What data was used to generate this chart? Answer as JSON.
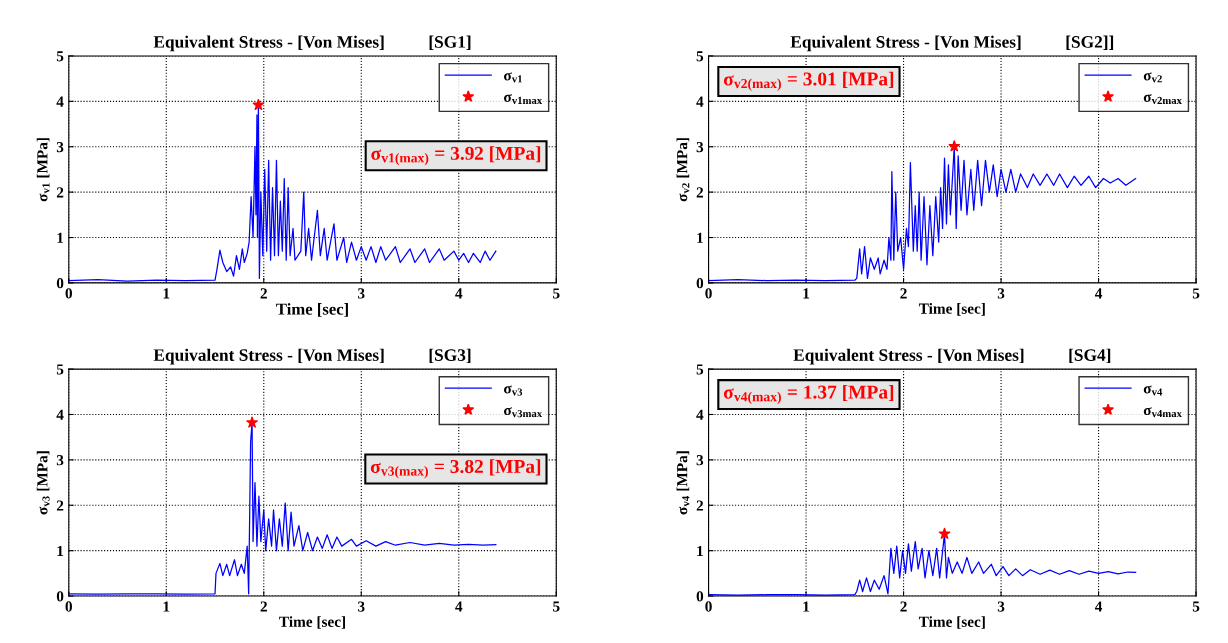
{
  "chart_data": [
    {
      "type": "line",
      "title": "Equivalent Stress - [Von Mises]          [SG1]",
      "xlabel": "Time [sec]",
      "ylabel": "σ$_{v1}$ [MPa]",
      "xlim": [
        0,
        5
      ],
      "xticks": [
        0,
        1,
        2,
        3,
        4,
        5
      ],
      "ylim": [
        0,
        5
      ],
      "yticks": [
        0,
        1,
        2,
        3,
        4,
        5
      ],
      "grid": true,
      "legend": "top right",
      "annotations": [
        "σ$_{v1(max)}$ = 3.92 [MPa]"
      ],
      "series": [
        {
          "name": "σ$_{v1}$",
          "color": "#0000ff",
          "marker": "none",
          "x": [
            0,
            0.3,
            0.6,
            0.9,
            1.2,
            1.5,
            1.52,
            1.55,
            1.58,
            1.62,
            1.66,
            1.69,
            1.72,
            1.75,
            1.78,
            1.8,
            1.83,
            1.85,
            1.87,
            1.89,
            1.91,
            1.92,
            1.93,
            1.935,
            1.945,
            1.955,
            1.97,
            1.99,
            2.01,
            2.03,
            2.05,
            2.07,
            2.09,
            2.11,
            2.13,
            2.15,
            2.17,
            2.19,
            2.21,
            2.23,
            2.25,
            2.27,
            2.3,
            2.32,
            2.38,
            2.41,
            2.43,
            2.46,
            2.49,
            2.55,
            2.58,
            2.62,
            2.65,
            2.72,
            2.75,
            2.82,
            2.85,
            2.9,
            2.95,
            3.0,
            3.05,
            3.1,
            3.15,
            3.2,
            3.25,
            3.35,
            3.4,
            3.5,
            3.55,
            3.65,
            3.7,
            3.8,
            3.85,
            3.95,
            4.0,
            4.05,
            4.1,
            4.15,
            4.22,
            4.27,
            4.32,
            4.38
          ],
          "values": [
            0.05,
            0.07,
            0.04,
            0.06,
            0.05,
            0.06,
            0.3,
            0.72,
            0.45,
            0.25,
            0.35,
            0.15,
            0.6,
            0.3,
            0.75,
            0.45,
            0.65,
            0.9,
            1.9,
            1.0,
            3.0,
            1.5,
            3.7,
            1.0,
            3.92,
            0.1,
            2.0,
            0.6,
            2.5,
            0.7,
            2.7,
            0.5,
            2.1,
            0.6,
            2.7,
            0.6,
            1.8,
            0.7,
            2.3,
            0.5,
            2.1,
            0.6,
            1.2,
            0.5,
            0.7,
            2.0,
            0.6,
            1.2,
            0.5,
            1.6,
            0.6,
            1.2,
            0.5,
            1.3,
            0.5,
            1.0,
            0.45,
            0.9,
            0.5,
            0.8,
            0.5,
            0.8,
            0.45,
            0.8,
            0.5,
            0.8,
            0.45,
            0.75,
            0.45,
            0.75,
            0.45,
            0.75,
            0.5,
            0.7,
            0.5,
            0.65,
            0.45,
            0.65,
            0.45,
            0.7,
            0.5,
            0.7
          ]
        },
        {
          "name": "σ$_{v1max}$",
          "type": "scatter",
          "color": "#ff0000",
          "marker": "star",
          "x": [
            1.945
          ],
          "values": [
            3.92
          ]
        }
      ]
    },
    {
      "type": "line",
      "title": "Equivalent Stress - [Von Mises]          [SG2]]",
      "xlabel": "Time [sec]",
      "ylabel": "σ$_{v2}$ [MPa]",
      "xlim": [
        0,
        5
      ],
      "xticks": [
        0,
        1,
        2,
        3,
        4,
        5
      ],
      "ylim": [
        0,
        5
      ],
      "yticks": [
        0,
        1,
        2,
        3,
        4,
        5
      ],
      "grid": true,
      "legend": "top right",
      "annotations": [
        "σ$_{v2(max)}$ = 3.01 [MPa]"
      ],
      "series": [
        {
          "name": "σ$_{v2}$",
          "color": "#0000ff",
          "marker": "none",
          "x": [
            0,
            0.3,
            0.6,
            0.9,
            1.2,
            1.5,
            1.52,
            1.55,
            1.57,
            1.6,
            1.63,
            1.66,
            1.7,
            1.74,
            1.76,
            1.8,
            1.83,
            1.85,
            1.87,
            1.88,
            1.9,
            1.92,
            1.94,
            1.97,
            2.0,
            2.03,
            2.05,
            2.07,
            2.1,
            2.12,
            2.14,
            2.16,
            2.18,
            2.21,
            2.24,
            2.27,
            2.3,
            2.33,
            2.36,
            2.38,
            2.4,
            2.42,
            2.44,
            2.46,
            2.48,
            2.52,
            2.54,
            2.56,
            2.59,
            2.62,
            2.65,
            2.69,
            2.72,
            2.76,
            2.8,
            2.84,
            2.88,
            2.92,
            2.96,
            3.0,
            3.05,
            3.1,
            3.15,
            3.2,
            3.27,
            3.33,
            3.4,
            3.47,
            3.54,
            3.6,
            3.68,
            3.75,
            3.82,
            3.9,
            3.97,
            4.05,
            4.12,
            4.2,
            4.28,
            4.38
          ],
          "values": [
            0.05,
            0.07,
            0.05,
            0.06,
            0.05,
            0.06,
            0.1,
            0.75,
            0.2,
            0.8,
            0.1,
            0.55,
            0.3,
            0.55,
            0.2,
            0.5,
            0.3,
            1.0,
            0.5,
            2.45,
            0.5,
            2.0,
            0.7,
            1.0,
            0.3,
            1.2,
            0.8,
            2.65,
            0.7,
            1.7,
            0.7,
            2.0,
            0.5,
            1.9,
            0.4,
            1.7,
            0.6,
            1.9,
            0.9,
            2.1,
            1.2,
            2.75,
            1.3,
            2.6,
            1.5,
            3.01,
            1.2,
            2.8,
            1.6,
            2.7,
            1.5,
            2.5,
            1.6,
            2.7,
            1.7,
            2.7,
            2.0,
            2.6,
            1.9,
            2.5,
            2.0,
            2.5,
            2.0,
            2.4,
            2.1,
            2.4,
            2.15,
            2.4,
            2.15,
            2.4,
            2.1,
            2.35,
            2.15,
            2.35,
            2.1,
            2.3,
            2.2,
            2.3,
            2.15,
            2.3
          ]
        },
        {
          "name": "σ$_{v2max}$",
          "type": "scatter",
          "color": "#ff0000",
          "marker": "star",
          "x": [
            2.52
          ],
          "values": [
            3.01
          ]
        }
      ]
    },
    {
      "type": "line",
      "title": "Equivalent Stress - [Von Mises]          [SG3]",
      "xlabel": "Time [sec]",
      "ylabel": "σ$_{v3}$ [MPa]",
      "xlim": [
        0,
        5
      ],
      "xticks": [
        0,
        1,
        2,
        3,
        4,
        5
      ],
      "ylim": [
        0,
        5
      ],
      "yticks": [
        0,
        1,
        2,
        3,
        4,
        5
      ],
      "grid": true,
      "legend": "top right",
      "annotations": [
        "σ$_{v3(max)}$ = 3.82 [MPa]"
      ],
      "series": [
        {
          "name": "σ$_{v3}$",
          "color": "#0000ff",
          "marker": "none",
          "x": [
            0,
            0.3,
            0.6,
            0.9,
            1.2,
            1.5,
            1.51,
            1.55,
            1.58,
            1.62,
            1.65,
            1.7,
            1.73,
            1.77,
            1.8,
            1.83,
            1.845,
            1.865,
            1.88,
            1.89,
            1.91,
            1.93,
            1.95,
            1.97,
            2.0,
            2.02,
            2.05,
            2.08,
            2.1,
            2.13,
            2.16,
            2.19,
            2.22,
            2.25,
            2.28,
            2.31,
            2.36,
            2.4,
            2.45,
            2.5,
            2.55,
            2.6,
            2.65,
            2.7,
            2.75,
            2.8,
            2.9,
            2.95,
            3.05,
            3.15,
            3.25,
            3.35,
            3.5,
            3.65,
            3.8,
            3.95,
            4.1,
            4.25,
            4.38
          ],
          "values": [
            0.05,
            0.04,
            0.05,
            0.05,
            0.04,
            0.05,
            0.5,
            0.72,
            0.45,
            0.7,
            0.45,
            0.8,
            0.45,
            0.7,
            0.5,
            1.1,
            0.05,
            3.4,
            3.82,
            1.2,
            2.5,
            1.1,
            2.2,
            1.2,
            1.9,
            1.0,
            1.7,
            1.1,
            1.9,
            1.0,
            1.7,
            1.1,
            2.05,
            1.0,
            1.85,
            1.1,
            1.55,
            1.0,
            1.4,
            1.0,
            1.3,
            1.05,
            1.35,
            1.05,
            1.3,
            1.1,
            1.25,
            1.1,
            1.22,
            1.1,
            1.2,
            1.12,
            1.18,
            1.12,
            1.16,
            1.12,
            1.14,
            1.12,
            1.13
          ]
        },
        {
          "name": "σ$_{v3max}$",
          "type": "scatter",
          "color": "#ff0000",
          "marker": "star",
          "x": [
            1.88
          ],
          "values": [
            3.82
          ]
        }
      ]
    },
    {
      "type": "line",
      "title": "Equivalent Stress - [Von Mises]          [SG4]",
      "xlabel": "Time [sec]",
      "ylabel": "σ$_{v4}$ [MPa]",
      "xlim": [
        0,
        5
      ],
      "xticks": [
        0,
        1,
        2,
        3,
        4,
        5
      ],
      "ylim": [
        0,
        5
      ],
      "yticks": [
        0,
        1,
        2,
        3,
        4,
        5
      ],
      "grid": true,
      "legend": "top right",
      "annotations": [
        "σ$_{v4(max)}$ = 1.37 [MPa]"
      ],
      "series": [
        {
          "name": "σ$_{v4}$",
          "color": "#0000ff",
          "marker": "none",
          "x": [
            0,
            0.3,
            0.6,
            0.9,
            1.2,
            1.5,
            1.52,
            1.55,
            1.58,
            1.62,
            1.66,
            1.7,
            1.75,
            1.8,
            1.84,
            1.87,
            1.9,
            1.93,
            1.96,
            1.99,
            2.02,
            2.05,
            2.08,
            2.12,
            2.15,
            2.19,
            2.22,
            2.26,
            2.3,
            2.34,
            2.37,
            2.42,
            2.44,
            2.46,
            2.5,
            2.55,
            2.6,
            2.65,
            2.7,
            2.77,
            2.82,
            2.9,
            2.95,
            3.02,
            3.08,
            3.15,
            3.22,
            3.3,
            3.4,
            3.5,
            3.6,
            3.7,
            3.8,
            3.9,
            4.0,
            4.1,
            4.2,
            4.3,
            4.38
          ],
          "values": [
            0.03,
            0.02,
            0.03,
            0.03,
            0.02,
            0.03,
            0.1,
            0.35,
            0.1,
            0.4,
            0.1,
            0.35,
            0.15,
            0.45,
            0.05,
            1.05,
            0.5,
            1.1,
            0.4,
            1.0,
            0.5,
            1.15,
            0.55,
            1.2,
            0.6,
            1.05,
            0.4,
            1.0,
            0.45,
            1.05,
            0.4,
            1.37,
            0.4,
            0.85,
            0.5,
            0.75,
            0.5,
            0.85,
            0.5,
            0.75,
            0.5,
            0.7,
            0.45,
            0.65,
            0.45,
            0.6,
            0.45,
            0.58,
            0.48,
            0.57,
            0.48,
            0.56,
            0.48,
            0.55,
            0.5,
            0.54,
            0.49,
            0.53,
            0.52
          ]
        },
        {
          "name": "σ$_{v4max}$",
          "type": "scatter",
          "color": "#ff0000",
          "marker": "star",
          "x": [
            2.42
          ],
          "values": [
            1.37
          ]
        }
      ]
    }
  ]
}
